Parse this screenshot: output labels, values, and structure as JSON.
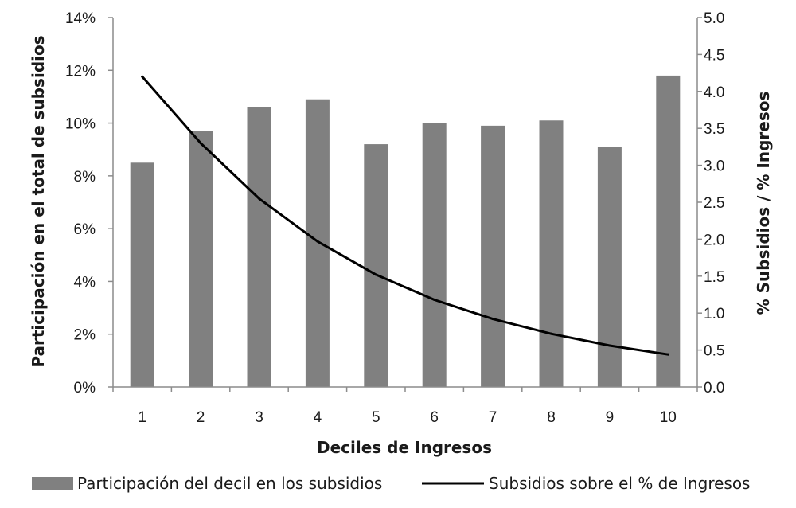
{
  "chart_data": {
    "type": "bar+line",
    "categories": [
      "1",
      "2",
      "3",
      "4",
      "5",
      "6",
      "7",
      "8",
      "9",
      "10"
    ],
    "xlabel": "Deciles de Ingresos",
    "ylabel": "Participación  en el total de subsidios",
    "y2label": "% Subsidios  / % Ingresos",
    "ylim": [
      0,
      14
    ],
    "y2lim": [
      0,
      5
    ],
    "yticks": [
      "0%",
      "2%",
      "4%",
      "6%",
      "8%",
      "10%",
      "12%",
      "14%"
    ],
    "y2ticks": [
      "0.0",
      "0.5",
      "1.0",
      "1.5",
      "2.0",
      "2.5",
      "3.0",
      "3.5",
      "4.0",
      "4.5",
      "5.0"
    ],
    "grid": false,
    "legend_position": "bottom",
    "series": [
      {
        "name": "Participación del decil en los subsidios",
        "type": "bar",
        "axis": "left",
        "color": "#808080",
        "values": [
          8.5,
          9.7,
          10.6,
          10.9,
          9.2,
          10.0,
          9.9,
          10.1,
          9.1,
          11.8
        ]
      },
      {
        "name": "Subsidios sobre el % de Ingresos",
        "type": "line",
        "axis": "right",
        "color": "#000000",
        "values": [
          4.2,
          3.3,
          2.55,
          1.97,
          1.52,
          1.18,
          0.92,
          0.72,
          0.56,
          0.44
        ]
      }
    ]
  }
}
